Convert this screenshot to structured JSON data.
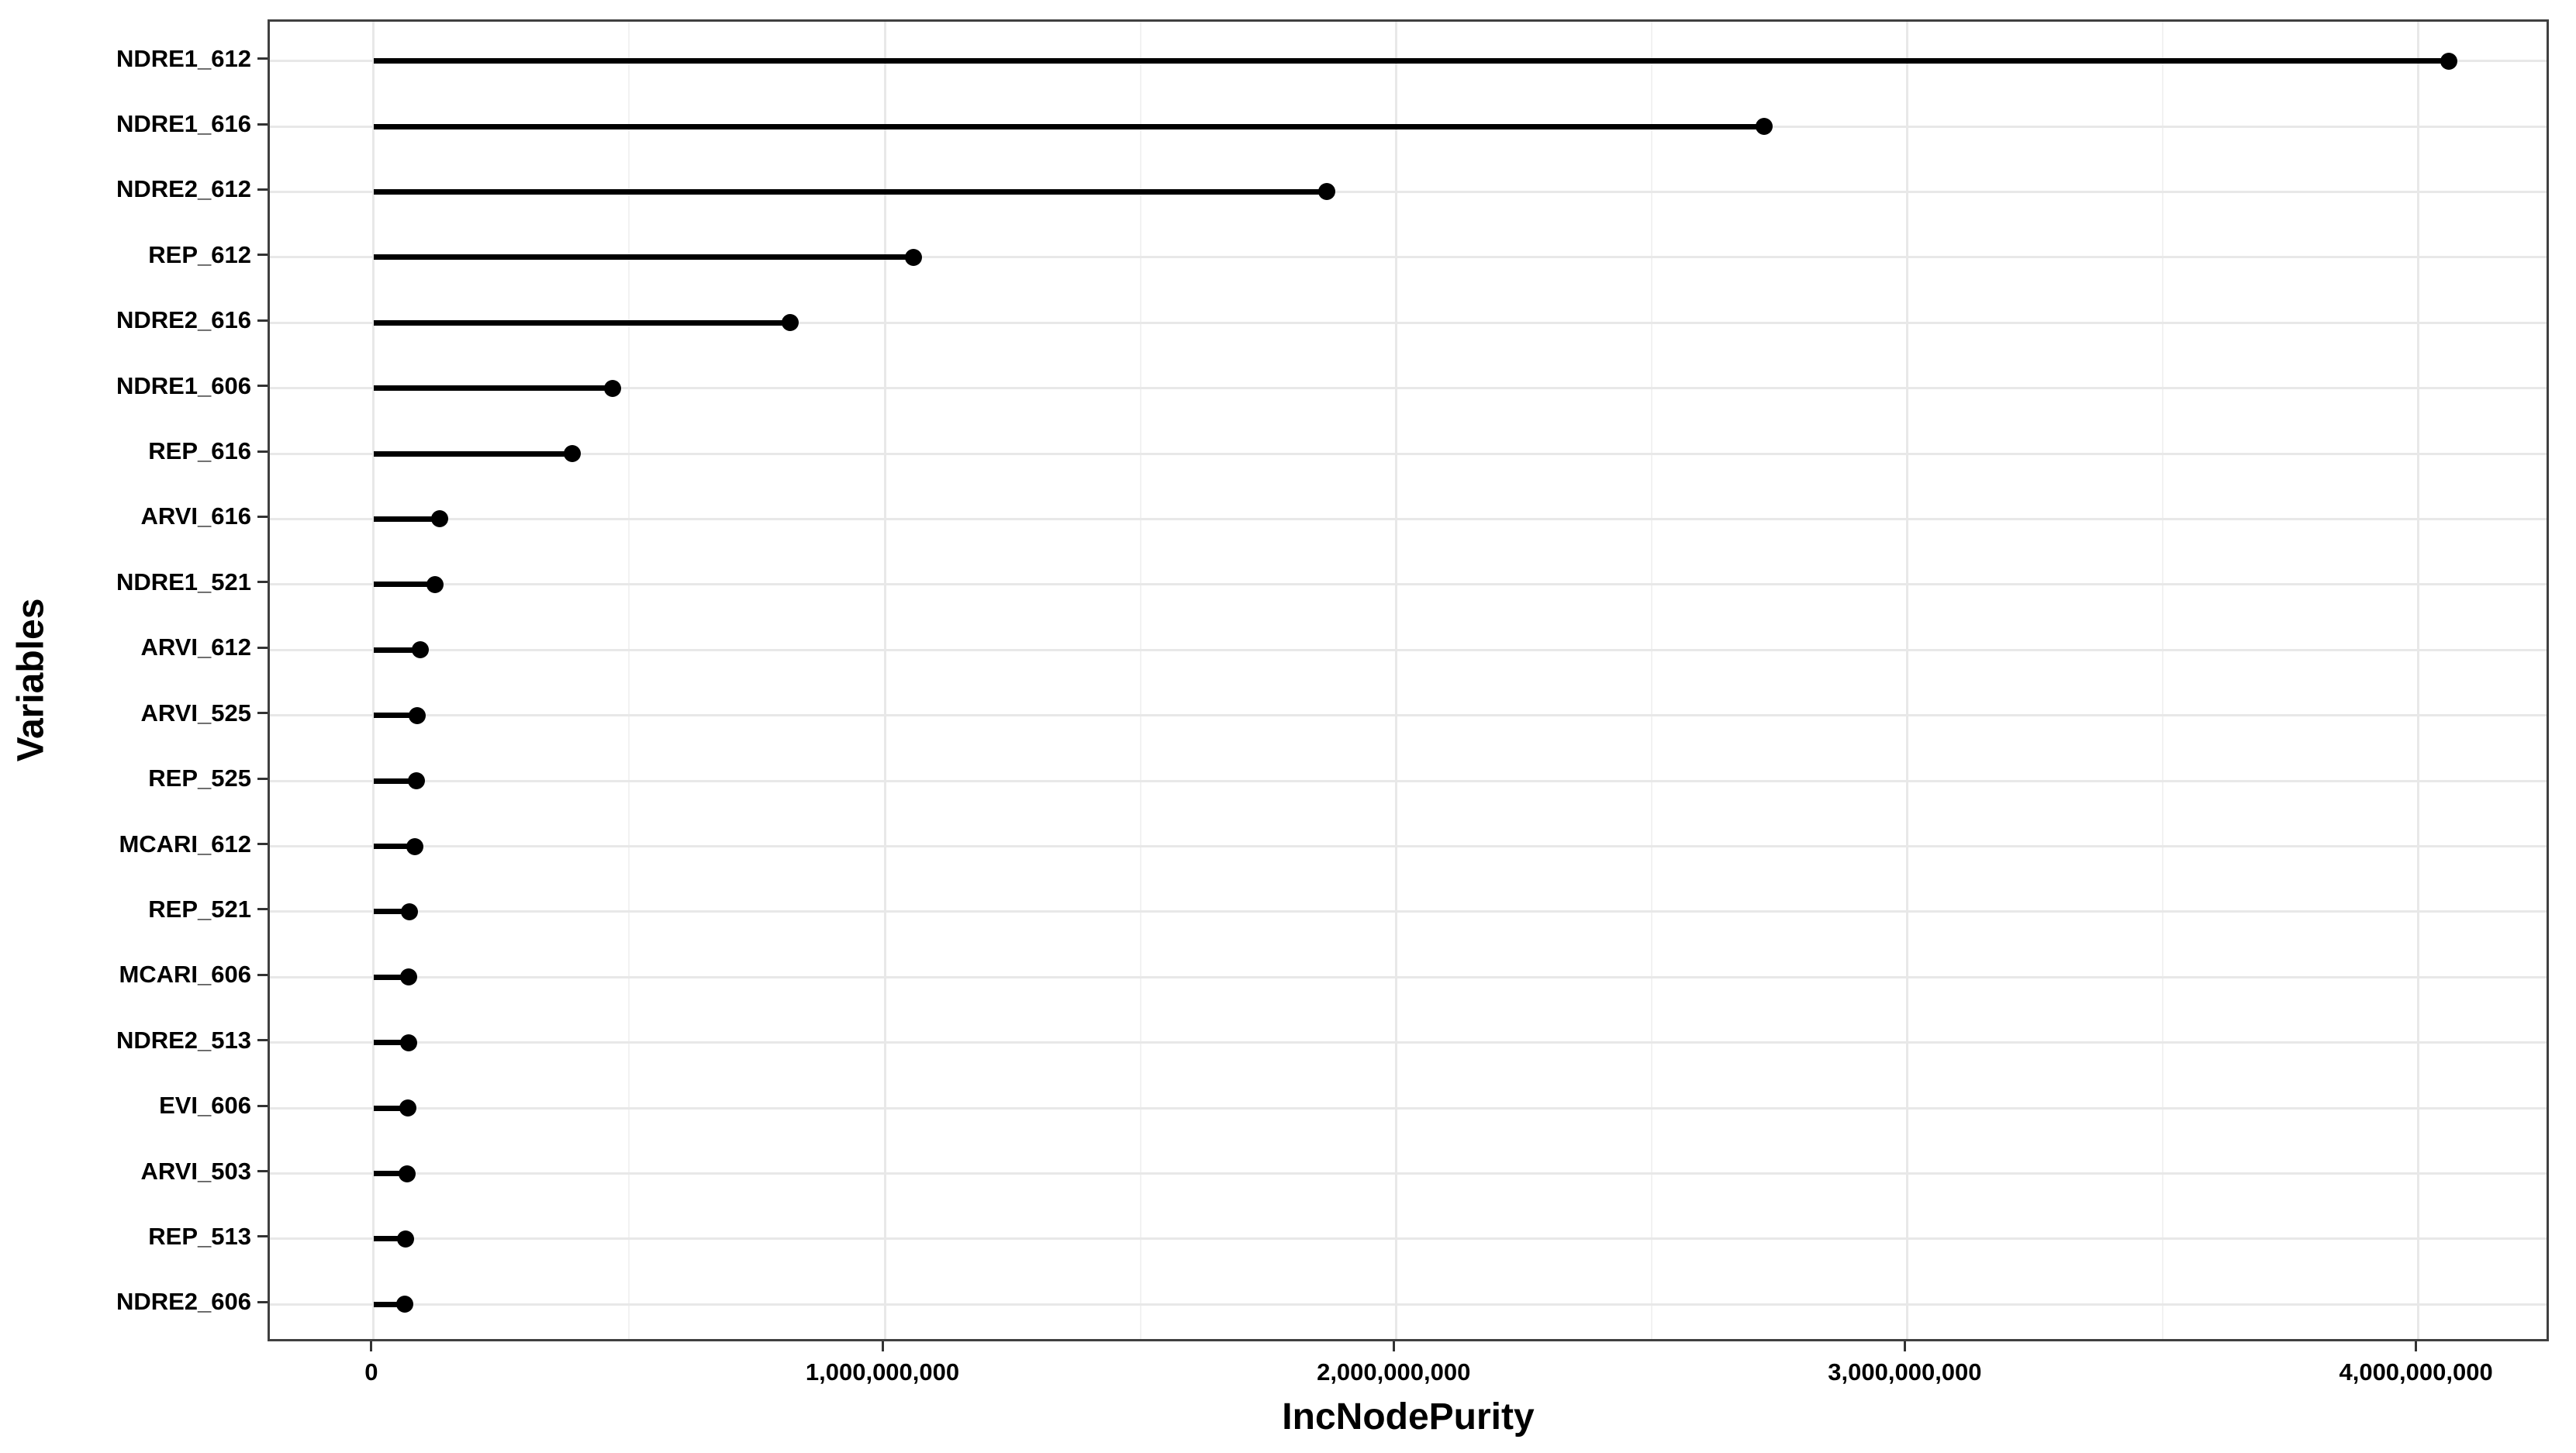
{
  "figure": {
    "background": "#ffffff",
    "text_color": "#000000",
    "tick_color": "#333333",
    "panel_border_color": "#404040",
    "grid_major_color": "#e8e8e8",
    "grid_minor_color": "#f2f2f2"
  },
  "chart_data": {
    "type": "scatter",
    "variant": "lollipop",
    "orientation": "horizontal",
    "title": "",
    "xlabel": "IncNodePurity",
    "ylabel": "Variables",
    "categories": [
      "NDRE1_612",
      "NDRE1_616",
      "NDRE2_612",
      "REP_612",
      "NDRE2_616",
      "NDRE1_606",
      "REP_616",
      "ARVI_616",
      "NDRE1_521",
      "ARVI_612",
      "ARVI_525",
      "REP_525",
      "MCARI_612",
      "REP_521",
      "MCARI_606",
      "NDRE2_513",
      "EVI_606",
      "ARVI_503",
      "REP_513",
      "NDRE2_606"
    ],
    "values": [
      4060000000,
      2720000000,
      1865000000,
      1056000000,
      815000000,
      467000000,
      388000000,
      129000000,
      120000000,
      91000000,
      85000000,
      83000000,
      80000000,
      70000000,
      68000000,
      68000000,
      67000000,
      65000000,
      62000000,
      61000000
    ],
    "x_ticks": {
      "values": [
        0,
        1000000000,
        2000000000,
        3000000000,
        4000000000
      ],
      "labels": [
        "0",
        "1,000,000,000",
        "2,000,000,000",
        "3,000,000,000",
        "4,000,000,000"
      ]
    },
    "x_minor_ticks": [
      500000000,
      1500000000,
      2500000000,
      3500000000
    ],
    "xlim": [
      -203000000,
      4260000000
    ],
    "grid": "major-and-minor",
    "legend": "none",
    "point_color": "#000000",
    "line_color": "#000000"
  }
}
